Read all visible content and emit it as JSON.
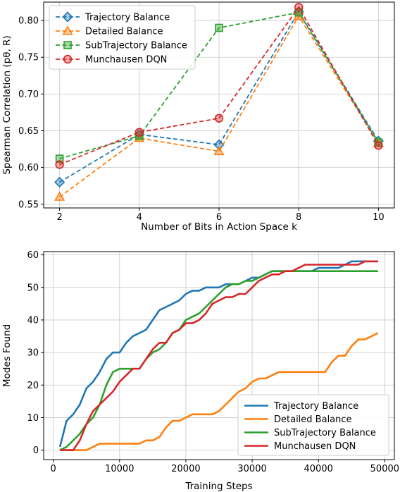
{
  "chart_data": [
    {
      "type": "line",
      "xlabel": "Number of Bits in Action Space k",
      "ylabel": "Spearman Correlation (pθ, R)",
      "x": [
        2,
        4,
        6,
        8,
        10
      ],
      "xlim": [
        1.6,
        10.4
      ],
      "ylim": [
        0.545,
        0.825
      ],
      "xticks": [
        2,
        4,
        6,
        8,
        10
      ],
      "yticks": [
        0.55,
        0.6,
        0.65,
        0.7,
        0.75,
        0.8
      ],
      "grid": true,
      "legend": "top-left",
      "series": [
        {
          "name": "Trajectory Balance",
          "color": "#1f77b4",
          "marker": "diamond",
          "values": [
            0.58,
            0.645,
            0.631,
            0.812,
            0.636
          ]
        },
        {
          "name": "Detailed Balance",
          "color": "#ff7f0e",
          "marker": "triangle",
          "values": [
            0.56,
            0.64,
            0.622,
            0.806,
            0.633
          ]
        },
        {
          "name": "SubTrajectory Balance",
          "color": "#2ca02c",
          "marker": "square",
          "values": [
            0.612,
            0.643,
            0.79,
            0.811,
            0.634
          ]
        },
        {
          "name": "Munchausen DQN",
          "color": "#d62728",
          "marker": "circle",
          "values": [
            0.604,
            0.648,
            0.667,
            0.818,
            0.63
          ]
        }
      ]
    },
    {
      "type": "line",
      "xlabel": "Training Steps",
      "ylabel": "Modes Found",
      "xlim": [
        -1450,
        51450
      ],
      "ylim": [
        -2.9,
        61
      ],
      "xticks": [
        0,
        10000,
        20000,
        30000,
        40000,
        50000
      ],
      "yticks": [
        0,
        10,
        20,
        30,
        40,
        50,
        60
      ],
      "grid": true,
      "legend": "bottom-right",
      "series": [
        {
          "name": "Trajectory Balance",
          "color": "#1f77b4",
          "x": [
            1000,
            2000,
            3000,
            4000,
            5000,
            6000,
            7000,
            8000,
            9000,
            10000,
            11000,
            12000,
            13000,
            14000,
            15000,
            16000,
            17000,
            18000,
            19000,
            20000,
            21000,
            22000,
            23000,
            24000,
            25000,
            26000,
            27000,
            28000,
            29000,
            30000,
            31000,
            32000,
            33000,
            34000,
            35000,
            36000,
            37000,
            38000,
            39000,
            40000,
            41000,
            42000,
            43000,
            44000,
            45000,
            46000,
            47000,
            48000,
            49000
          ],
          "values": [
            1,
            9,
            11,
            14,
            19,
            21,
            24,
            28,
            30,
            30,
            33,
            35,
            36,
            37,
            40,
            43,
            44,
            45,
            46,
            48,
            49,
            49,
            50,
            50,
            50,
            51,
            51,
            51,
            52,
            53,
            53,
            54,
            55,
            55,
            55,
            55,
            55,
            55,
            55,
            56,
            56,
            56,
            56,
            57,
            58,
            58,
            58,
            58,
            58
          ]
        },
        {
          "name": "Detailed Balance",
          "color": "#ff7f0e",
          "x": [
            1000,
            2000,
            3000,
            4000,
            5000,
            6000,
            7000,
            8000,
            9000,
            10000,
            11000,
            12000,
            13000,
            14000,
            15000,
            16000,
            17000,
            18000,
            19000,
            20000,
            21000,
            22000,
            23000,
            24000,
            25000,
            26000,
            27000,
            28000,
            29000,
            30000,
            31000,
            32000,
            33000,
            34000,
            35000,
            36000,
            37000,
            38000,
            39000,
            40000,
            41000,
            42000,
            43000,
            44000,
            45000,
            46000,
            47000,
            48000,
            49000
          ],
          "values": [
            0,
            0,
            0,
            0,
            0,
            1,
            2,
            2,
            2,
            2,
            2,
            2,
            2,
            3,
            3,
            4,
            7,
            9,
            9,
            10,
            11,
            11,
            11,
            11,
            12,
            14,
            16,
            18,
            19,
            21,
            22,
            22,
            23,
            24,
            24,
            24,
            24,
            24,
            24,
            24,
            24,
            27,
            29,
            29,
            32,
            34,
            34,
            35,
            36
          ]
        },
        {
          "name": "SubTrajectory Balance",
          "color": "#2ca02c",
          "x": [
            1000,
            2000,
            3000,
            4000,
            5000,
            6000,
            7000,
            8000,
            9000,
            10000,
            11000,
            12000,
            13000,
            14000,
            15000,
            16000,
            17000,
            18000,
            19000,
            20000,
            21000,
            22000,
            23000,
            24000,
            25000,
            26000,
            27000,
            28000,
            29000,
            30000,
            31000,
            32000,
            33000,
            34000,
            35000,
            36000,
            37000,
            38000,
            39000,
            40000,
            41000,
            42000,
            43000,
            44000,
            45000,
            46000,
            47000,
            48000,
            49000
          ],
          "values": [
            0,
            1,
            3,
            5,
            8,
            10,
            14,
            20,
            24,
            25,
            25,
            25,
            25,
            28,
            30,
            31,
            33,
            36,
            37,
            40,
            41,
            42,
            44,
            46,
            48,
            50,
            51,
            51,
            52,
            52,
            53,
            54,
            55,
            55,
            55,
            55,
            55,
            55,
            55,
            55,
            55,
            55,
            55,
            55,
            55,
            55,
            55,
            55,
            55
          ]
        },
        {
          "name": "Munchausen DQN",
          "color": "#d62728",
          "x": [
            1000,
            2000,
            3000,
            4000,
            5000,
            6000,
            7000,
            8000,
            9000,
            10000,
            11000,
            12000,
            13000,
            14000,
            15000,
            16000,
            17000,
            18000,
            19000,
            20000,
            21000,
            22000,
            23000,
            24000,
            25000,
            26000,
            27000,
            28000,
            29000,
            30000,
            31000,
            32000,
            33000,
            34000,
            35000,
            36000,
            37000,
            38000,
            39000,
            40000,
            41000,
            42000,
            43000,
            44000,
            45000,
            46000,
            47000,
            48000,
            49000
          ],
          "values": [
            0,
            0,
            0,
            3,
            8,
            12,
            14,
            16,
            18,
            21,
            23,
            25,
            25,
            28,
            31,
            33,
            33,
            36,
            37,
            39,
            39,
            40,
            42,
            45,
            46,
            47,
            47,
            48,
            48,
            50,
            52,
            53,
            54,
            54,
            55,
            55,
            56,
            57,
            57,
            57,
            57,
            57,
            57,
            57,
            57,
            57,
            58,
            58,
            58
          ]
        }
      ]
    }
  ]
}
